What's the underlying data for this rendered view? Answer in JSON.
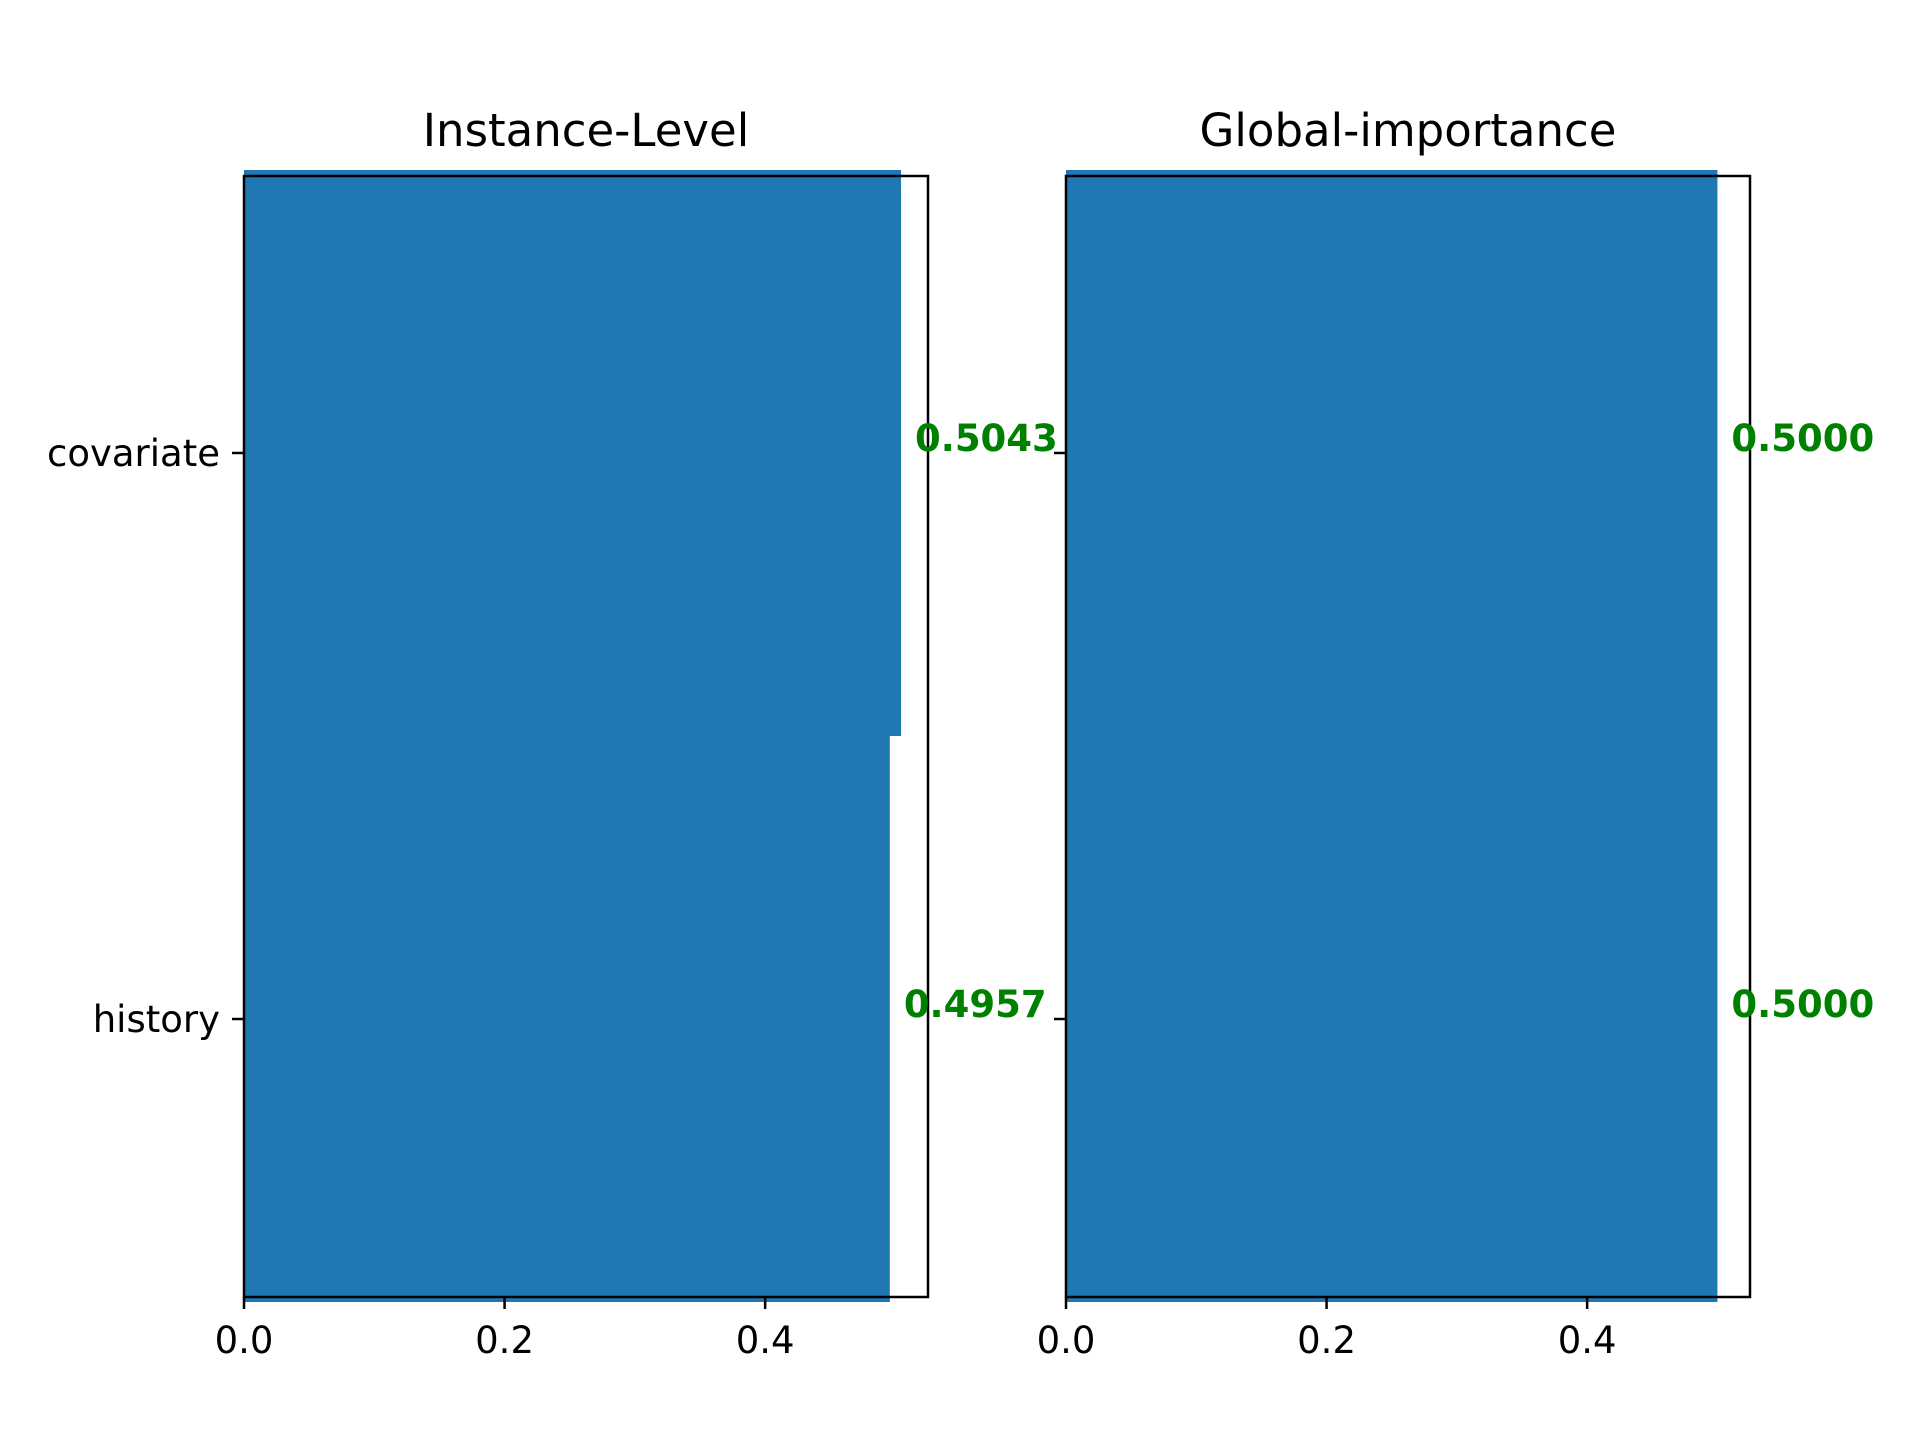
{
  "chart_data": [
    {
      "type": "bar",
      "orientation": "horizontal",
      "title": "Instance-Level",
      "categories": [
        "covariate",
        "history"
      ],
      "values": [
        0.5043,
        0.4957
      ],
      "value_labels": [
        "0.5043",
        "0.4957"
      ],
      "xlim": [
        0,
        0.525
      ],
      "xticks": [
        0.0,
        0.2,
        0.4
      ],
      "xtick_labels": [
        "0.0",
        "0.2",
        "0.4"
      ],
      "show_category_labels": true,
      "xlabel": "",
      "ylabel": "",
      "grid": false
    },
    {
      "type": "bar",
      "orientation": "horizontal",
      "title": "Global-importance",
      "categories": [
        "covariate",
        "history"
      ],
      "values": [
        0.5,
        0.5
      ],
      "value_labels": [
        "0.5000",
        "0.5000"
      ],
      "xlim": [
        0,
        0.525
      ],
      "xticks": [
        0.0,
        0.2,
        0.4
      ],
      "xtick_labels": [
        "0.0",
        "0.2",
        "0.4"
      ],
      "show_category_labels": false,
      "xlabel": "",
      "ylabel": "",
      "grid": false
    }
  ],
  "colors": {
    "bar": "#1f77b4",
    "value_label": "#008000",
    "axes": "#000000"
  }
}
